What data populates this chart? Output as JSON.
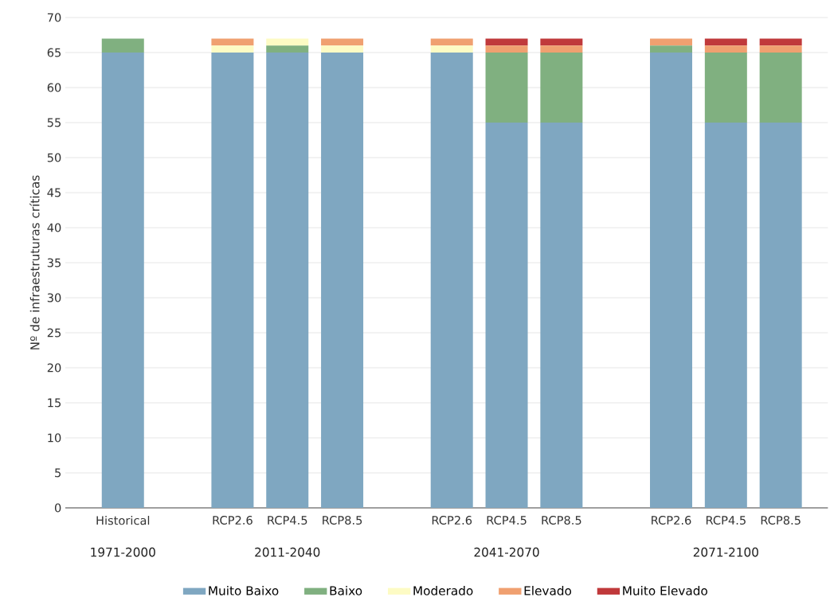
{
  "chart_data": {
    "type": "bar",
    "stacked": true,
    "ylabel": "Nº de infraestruturas críticas",
    "categories": [
      "Historical",
      null,
      "RCP2.6",
      "RCP4.5",
      "RCP8.5",
      null,
      "RCP2.6",
      "RCP4.5",
      "RCP8.5",
      null,
      "RCP2.6",
      "RCP4.5",
      "RCP8.5"
    ],
    "series": [
      {
        "name": "Muito Baixo",
        "color": "#7fa7c1",
        "values": [
          65,
          null,
          65,
          65,
          65,
          null,
          65,
          55,
          55,
          null,
          65,
          55,
          55
        ]
      },
      {
        "name": "Baixo",
        "color": "#80b080",
        "values": [
          2,
          null,
          0,
          1,
          0,
          null,
          0,
          10,
          10,
          null,
          1,
          10,
          10
        ]
      },
      {
        "name": "Moderado",
        "color": "#fdfbc4",
        "values": [
          0,
          null,
          1,
          1,
          1,
          null,
          1,
          0,
          0,
          null,
          0,
          0,
          0
        ]
      },
      {
        "name": "Elevado",
        "color": "#f0a070",
        "values": [
          0,
          null,
          1,
          0,
          1,
          null,
          1,
          1,
          1,
          null,
          1,
          1,
          1
        ]
      },
      {
        "name": "Muito Elevado",
        "color": "#c0393b",
        "values": [
          0,
          null,
          0,
          0,
          0,
          null,
          0,
          1,
          1,
          null,
          0,
          1,
          1
        ]
      }
    ],
    "annotations": [
      "1971-2000",
      "2011-2040",
      "2041-2070",
      "2071-2100"
    ],
    "ylim": [
      0,
      70
    ],
    "yticks": [
      0,
      5,
      10,
      15,
      20,
      25,
      30,
      35,
      40,
      45,
      50,
      55,
      60,
      65,
      70
    ],
    "grid": "y",
    "legend": "bottom"
  }
}
